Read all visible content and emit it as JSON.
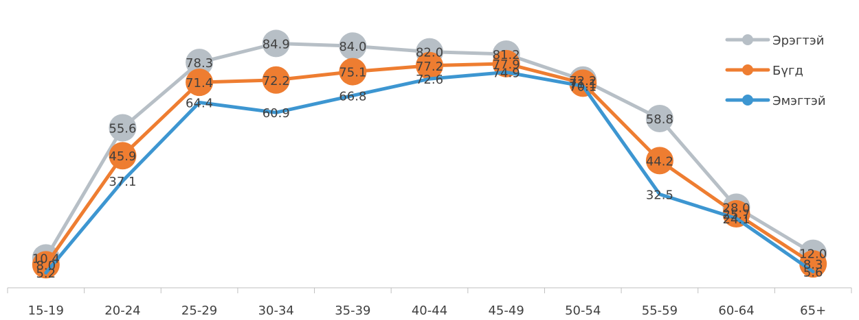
{
  "chart_data": {
    "type": "line",
    "title": "",
    "xlabel": "",
    "ylabel": "",
    "categories": [
      "15-19",
      "20-24",
      "25-29",
      "30-34",
      "35-39",
      "40-44",
      "45-49",
      "50-54",
      "55-59",
      "60-64",
      "65+"
    ],
    "ylim": [
      0,
      90
    ],
    "grid": false,
    "legend_position": "top-right",
    "series": [
      {
        "name": "Эрэгтэй",
        "color": "#B7BFC6",
        "marker": "circle",
        "values": [
          10.4,
          55.6,
          78.3,
          84.9,
          84.0,
          82.0,
          81.2,
          72.2,
          58.8,
          28.0,
          12.0
        ]
      },
      {
        "name": "Бүгд",
        "color": "#EE7D31",
        "marker": "circle",
        "values": [
          8.0,
          45.9,
          71.4,
          72.2,
          75.1,
          77.2,
          77.9,
          71.1,
          44.2,
          25.7,
          8.3
        ]
      },
      {
        "name": "Эмэгтэй",
        "color": "#3D96D1",
        "marker": "none",
        "values": [
          5.2,
          37.1,
          64.4,
          60.9,
          66.8,
          72.6,
          74.9,
          70.1,
          32.5,
          24.1,
          5.6
        ]
      }
    ]
  }
}
